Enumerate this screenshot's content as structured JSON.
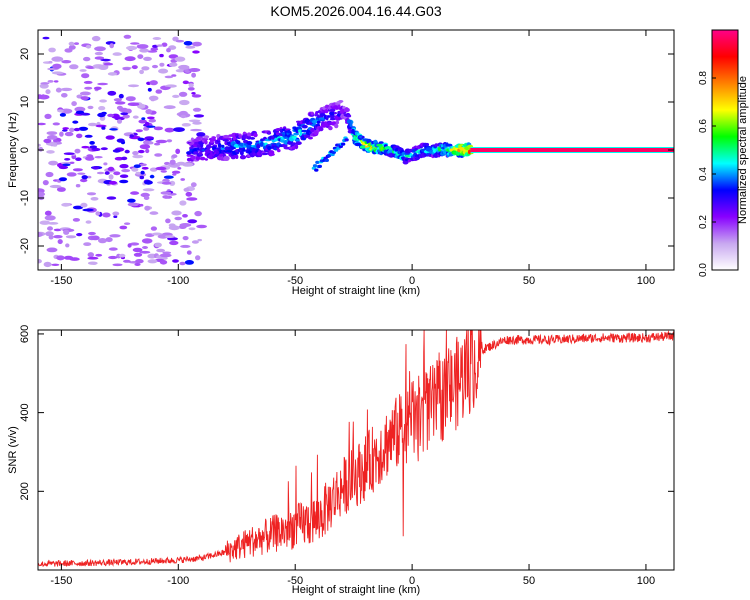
{
  "page": {
    "title": "KOM5.2026.004.16.44.G03"
  },
  "chart_data": [
    {
      "type": "heatmap",
      "title": "KOM5.2026.004.16.44.G03",
      "xlabel": "Height of straight line (km)",
      "ylabel": "Frequency (Hz)",
      "xlim": [
        -160,
        112
      ],
      "ylim": [
        -25,
        25
      ],
      "xticks": [
        -150,
        -100,
        -50,
        0,
        50,
        100
      ],
      "yticks": [
        -20,
        -10,
        0,
        10,
        20
      ],
      "colorbar": {
        "label": "Normalized spectral amplitude",
        "range": [
          0,
          1
        ],
        "ticks": [
          "0.0",
          "0.2",
          "0.4",
          "0.6",
          "0.8"
        ],
        "colors": [
          "#ffffff",
          "#c8a8f0",
          "#8800ff",
          "#0000ff",
          "#00ffff",
          "#00ff00",
          "#ffff00",
          "#ff8000",
          "#ff0000",
          "#ff0088"
        ]
      },
      "ridge": {
        "description_values_km_hz": [
          [
            -95,
            0,
            0.35
          ],
          [
            -80,
            0.5,
            0.4
          ],
          [
            -70,
            1,
            0.45
          ],
          [
            -60,
            1.5,
            0.45
          ],
          [
            -50,
            3,
            0.5
          ],
          [
            -40,
            6,
            0.4
          ],
          [
            -28,
            8,
            0.3
          ],
          [
            -25,
            3,
            0.6
          ],
          [
            -18,
            0.5,
            0.75
          ],
          [
            -10,
            0.3,
            0.55
          ],
          [
            -3,
            -1.5,
            0.5
          ],
          [
            5,
            0,
            0.5
          ],
          [
            15,
            0,
            0.6
          ],
          [
            25,
            0,
            1.0
          ],
          [
            110,
            0,
            1.0
          ]
        ]
      }
    },
    {
      "type": "line",
      "xlabel": "Height of straight line (km)",
      "ylabel": "SNR (v/v)",
      "xlim": [
        -160,
        112
      ],
      "ylim": [
        0,
        610
      ],
      "xticks": [
        -150,
        -100,
        -50,
        0,
        50,
        100
      ],
      "yticks": [
        200,
        400,
        600
      ],
      "series": [
        {
          "name": "SNR",
          "color": "#ee2222",
          "trend_x": [
            -160,
            -120,
            -100,
            -90,
            -80,
            -70,
            -60,
            -50,
            -40,
            -30,
            -20,
            -10,
            0,
            10,
            20,
            30,
            40,
            60,
            80,
            100,
            112
          ],
          "trend_y": [
            15,
            20,
            25,
            30,
            45,
            70,
            90,
            110,
            130,
            210,
            260,
            330,
            380,
            420,
            480,
            560,
            585,
            585,
            590,
            590,
            595
          ]
        }
      ]
    }
  ]
}
